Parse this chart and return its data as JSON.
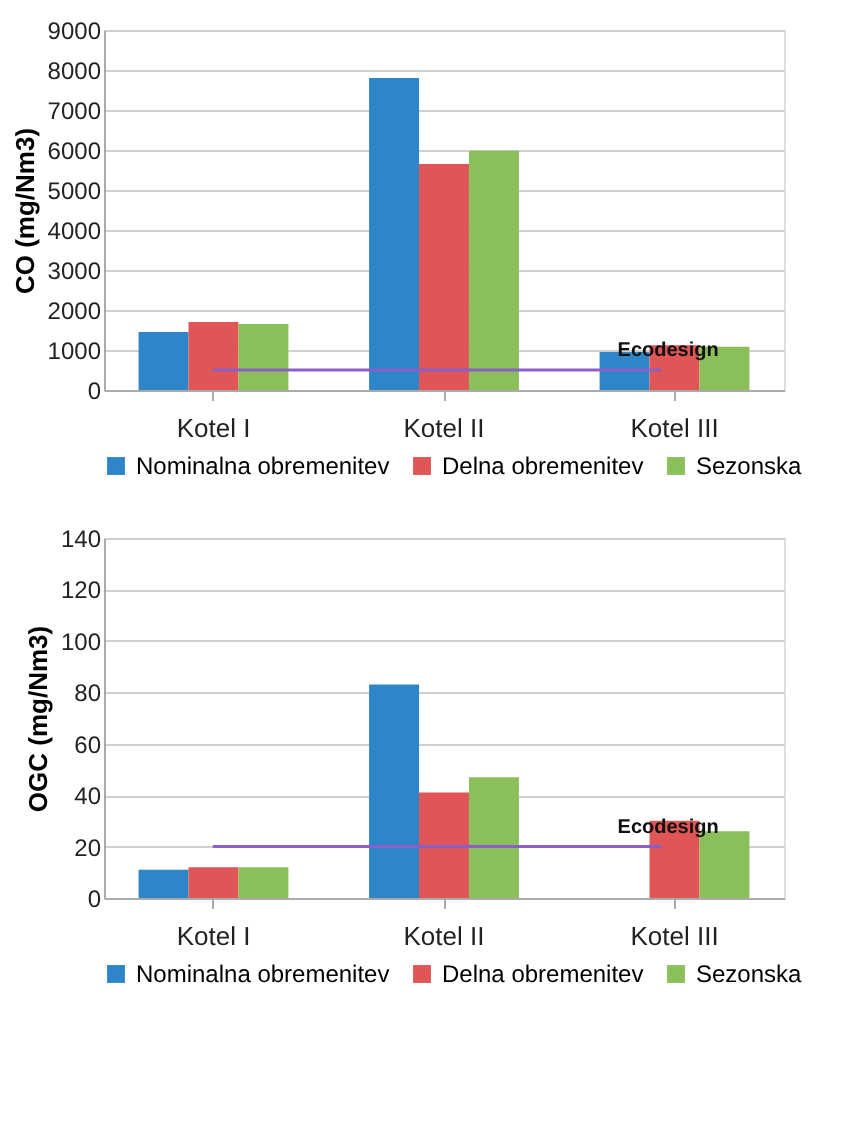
{
  "chart_data": [
    {
      "type": "bar",
      "ylabel": "CO (mg/Nm3)",
      "categories": [
        "Kotel I",
        "Kotel II",
        "Kotel III"
      ],
      "series": [
        {
          "name": "Nominalna obremenitev",
          "color": "#2e86c8",
          "values": [
            1450,
            7800,
            950
          ]
        },
        {
          "name": "Delna obremenitev",
          "color": "#e05555",
          "values": [
            1700,
            5650,
            1120
          ]
        },
        {
          "name": "Sezonska",
          "color": "#8bbf5a",
          "values": [
            1650,
            5980,
            1080
          ]
        }
      ],
      "ylim": [
        0,
        9000
      ],
      "yticks": [
        0,
        1000,
        2000,
        3000,
        4000,
        5000,
        6000,
        7000,
        8000,
        9000
      ],
      "grid": "y",
      "legend": "bottom",
      "ref_lines": [
        {
          "axis": "y",
          "value": 500,
          "label": "Ecodesign",
          "color": "#8a5fc8"
        }
      ]
    },
    {
      "type": "bar",
      "ylabel": "OGC (mg/Nm3)",
      "categories": [
        "Kotel I",
        "Kotel II",
        "Kotel III"
      ],
      "series": [
        {
          "name": "Nominalna obremenitev",
          "color": "#2e86c8",
          "values": [
            11,
            83,
            null
          ]
        },
        {
          "name": "Delna obremenitev",
          "color": "#e05555",
          "values": [
            12,
            41,
            30
          ]
        },
        {
          "name": "Sezonska",
          "color": "#8bbf5a",
          "values": [
            12,
            47,
            26
          ]
        }
      ],
      "ylim": [
        0,
        140
      ],
      "yticks": [
        0,
        20,
        40,
        60,
        80,
        100,
        120,
        140
      ],
      "grid": "y",
      "legend": "bottom",
      "ref_lines": [
        {
          "axis": "y",
          "value": 20,
          "label": "Ecodesign",
          "color": "#8a5fc8"
        }
      ]
    }
  ]
}
